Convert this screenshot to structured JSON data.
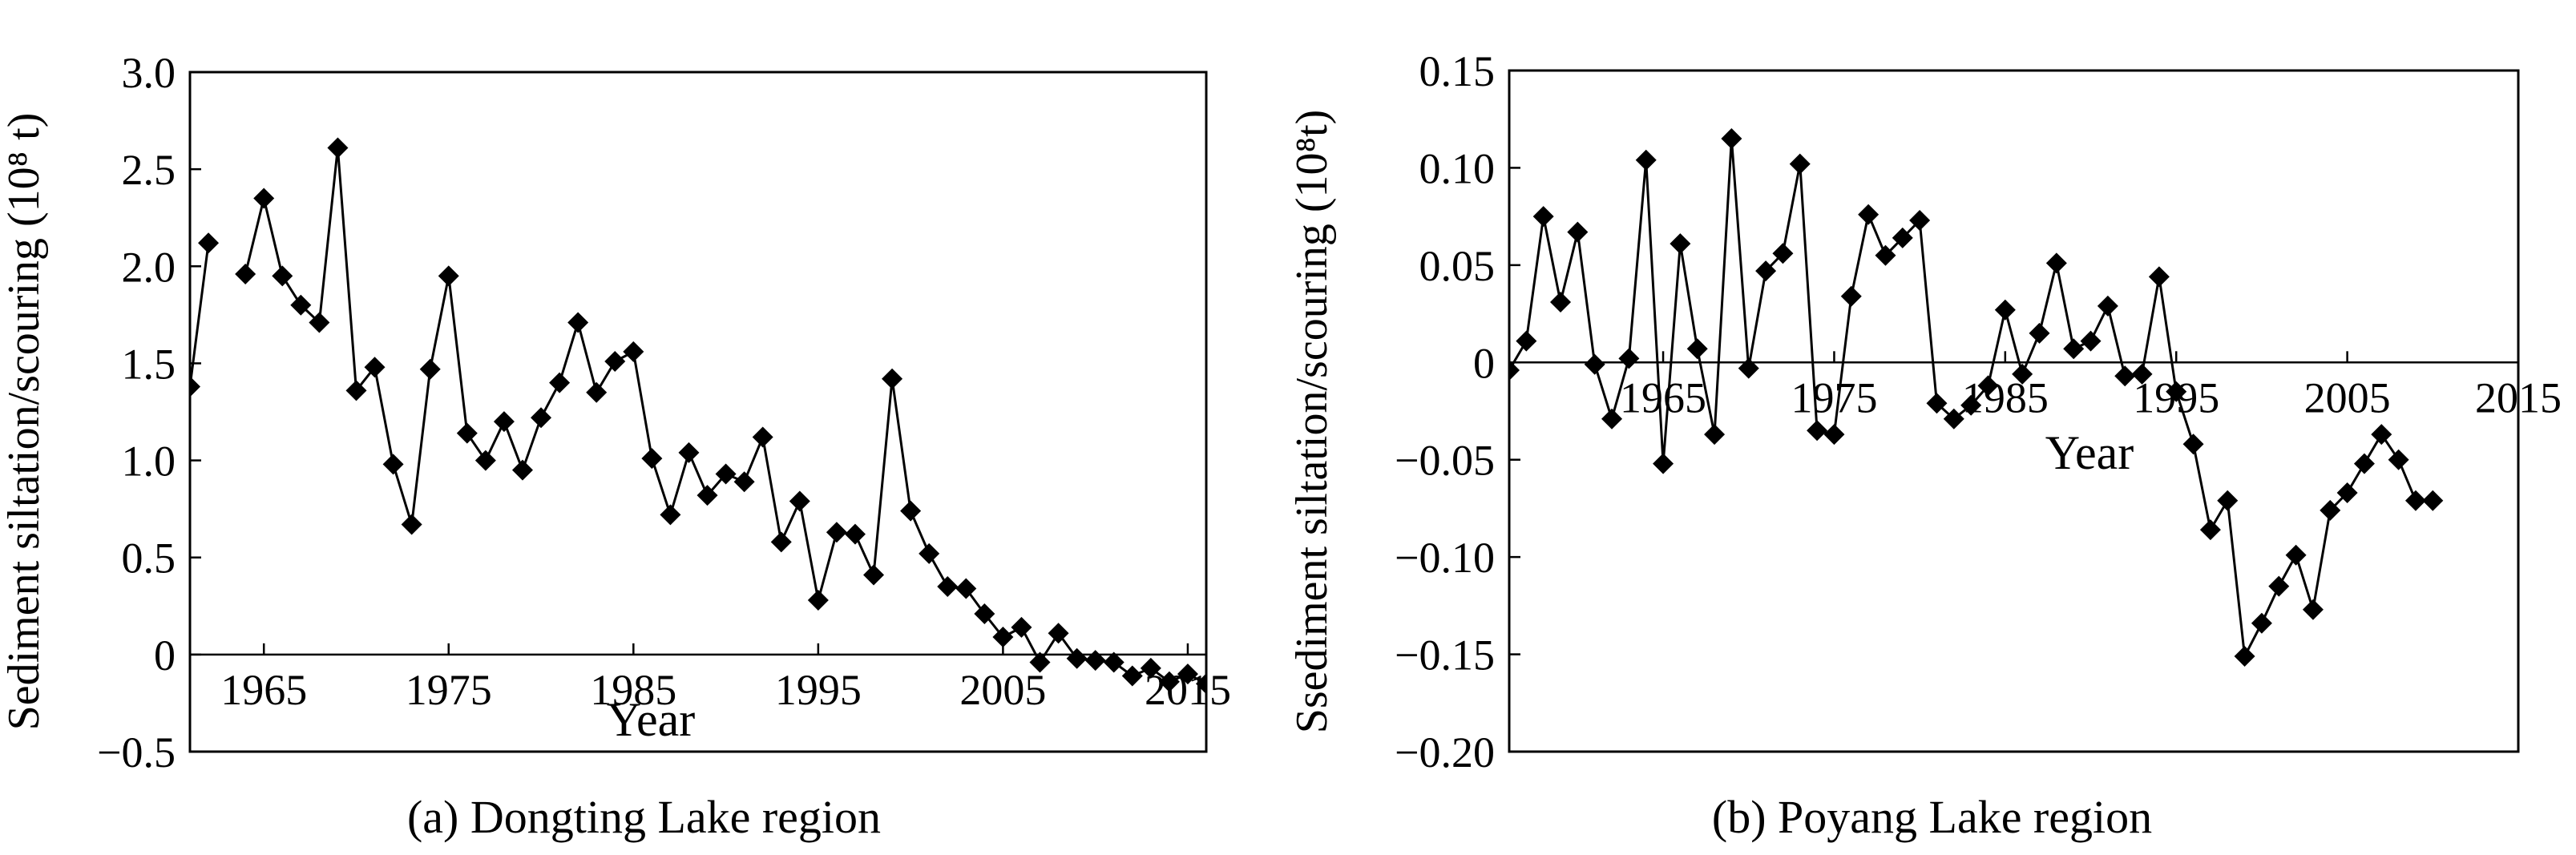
{
  "chart_data": [
    {
      "type": "line",
      "caption": "(a) Dongting Lake region",
      "ylabel": "Sediment siltation/scouring (10⁸ t)",
      "xlabel": "Year",
      "xlim": [
        1961,
        2016
      ],
      "ylim": [
        -0.5,
        3.0
      ],
      "yticks": [
        -0.5,
        0,
        0.5,
        1.0,
        1.5,
        2.0,
        2.5,
        3.0
      ],
      "ytick_labels": [
        "−0.5",
        "0",
        "0.5",
        "1.0",
        "1.5",
        "2.0",
        "2.5",
        "3.0"
      ],
      "xticks": [
        1965,
        1975,
        1985,
        1995,
        2005,
        2015
      ],
      "xtick_labels": [
        "1965",
        "1975",
        "1985",
        "1995",
        "2005",
        "2015"
      ],
      "zero_line": true,
      "grid": false,
      "marker": "diamond",
      "color": "#000000",
      "segments": [
        [
          [
            1961,
            1.38
          ],
          [
            1962,
            2.12
          ]
        ],
        [
          [
            1964,
            1.96
          ],
          [
            1965,
            2.35
          ],
          [
            1966,
            1.95
          ],
          [
            1967,
            1.8
          ],
          [
            1968,
            1.71
          ],
          [
            1969,
            2.61
          ],
          [
            1970,
            1.36
          ],
          [
            1971,
            1.48
          ],
          [
            1972,
            0.98
          ],
          [
            1973,
            0.67
          ],
          [
            1974,
            1.47
          ],
          [
            1975,
            1.95
          ],
          [
            1976,
            1.14
          ],
          [
            1977,
            1.0
          ],
          [
            1978,
            1.2
          ],
          [
            1979,
            0.95
          ],
          [
            1980,
            1.22
          ],
          [
            1981,
            1.4
          ],
          [
            1982,
            1.71
          ],
          [
            1983,
            1.35
          ],
          [
            1984,
            1.51
          ],
          [
            1985,
            1.56
          ],
          [
            1986,
            1.01
          ],
          [
            1987,
            0.72
          ],
          [
            1988,
            1.04
          ],
          [
            1989,
            0.82
          ],
          [
            1990,
            0.93
          ],
          [
            1991,
            0.89
          ],
          [
            1992,
            1.12
          ],
          [
            1993,
            0.58
          ],
          [
            1994,
            0.79
          ],
          [
            1995,
            0.28
          ],
          [
            1996,
            0.63
          ],
          [
            1997,
            0.62
          ],
          [
            1998,
            0.41
          ],
          [
            1999,
            1.42
          ],
          [
            2000,
            0.74
          ],
          [
            2001,
            0.52
          ],
          [
            2002,
            0.35
          ],
          [
            2003,
            0.34
          ],
          [
            2004,
            0.21
          ],
          [
            2005,
            0.09
          ],
          [
            2006,
            0.14
          ],
          [
            2007,
            -0.04
          ],
          [
            2008,
            0.11
          ],
          [
            2009,
            -0.02
          ],
          [
            2010,
            -0.03
          ],
          [
            2011,
            -0.04
          ],
          [
            2012,
            -0.11
          ],
          [
            2013,
            -0.07
          ],
          [
            2014,
            -0.14
          ],
          [
            2015,
            -0.1
          ],
          [
            2016,
            -0.15
          ]
        ]
      ]
    },
    {
      "type": "line",
      "caption": "(b) Poyang Lake region",
      "ylabel": "Ssediment siltation/scouring (10⁸t)",
      "xlabel": "Year",
      "xlim": [
        1956,
        2015
      ],
      "ylim": [
        -0.2,
        0.15
      ],
      "yticks": [
        -0.2,
        -0.15,
        -0.1,
        -0.05,
        0,
        0.05,
        0.1,
        0.15
      ],
      "ytick_labels": [
        "−0.20",
        "−0.15",
        "−0.10",
        "−0.05",
        "0",
        "0.05",
        "0.10",
        "0.15"
      ],
      "xticks": [
        1965,
        1975,
        1985,
        1995,
        2005,
        2015
      ],
      "xtick_labels": [
        "1965",
        "1975",
        "1985",
        "1995",
        "2005",
        "2015"
      ],
      "zero_line": true,
      "grid": false,
      "marker": "diamond",
      "color": "#000000",
      "segments": [
        [
          [
            1956,
            -0.004
          ],
          [
            1957,
            0.011
          ],
          [
            1958,
            0.075
          ],
          [
            1959,
            0.031
          ],
          [
            1960,
            0.067
          ],
          [
            1961,
            -0.001
          ],
          [
            1962,
            -0.029
          ],
          [
            1963,
            0.002
          ],
          [
            1964,
            0.104
          ],
          [
            1965,
            -0.052
          ],
          [
            1966,
            0.061
          ],
          [
            1967,
            0.007
          ],
          [
            1968,
            -0.037
          ],
          [
            1969,
            0.115
          ],
          [
            1970,
            -0.003
          ],
          [
            1971,
            0.047
          ],
          [
            1972,
            0.056
          ],
          [
            1973,
            0.102
          ],
          [
            1974,
            -0.035
          ],
          [
            1975,
            -0.037
          ],
          [
            1976,
            0.034
          ],
          [
            1977,
            0.076
          ],
          [
            1978,
            0.055
          ],
          [
            1979,
            0.064
          ],
          [
            1980,
            0.073
          ],
          [
            1981,
            -0.021
          ],
          [
            1982,
            -0.029
          ],
          [
            1983,
            -0.022
          ],
          [
            1984,
            -0.012
          ],
          [
            1985,
            0.027
          ],
          [
            1986,
            -0.006
          ],
          [
            1987,
            0.015
          ],
          [
            1988,
            0.051
          ],
          [
            1989,
            0.007
          ],
          [
            1990,
            0.011
          ],
          [
            1991,
            0.029
          ],
          [
            1992,
            -0.007
          ],
          [
            1993,
            -0.006
          ],
          [
            1994,
            0.044
          ],
          [
            1995,
            -0.015
          ],
          [
            1996,
            -0.042
          ],
          [
            1997,
            -0.086
          ],
          [
            1998,
            -0.071
          ],
          [
            1999,
            -0.151
          ],
          [
            2000,
            -0.134
          ],
          [
            2001,
            -0.115
          ],
          [
            2002,
            -0.099
          ],
          [
            2003,
            -0.127
          ],
          [
            2004,
            -0.076
          ],
          [
            2005,
            -0.067
          ],
          [
            2006,
            -0.052
          ],
          [
            2007,
            -0.037
          ],
          [
            2008,
            -0.05
          ],
          [
            2009,
            -0.071
          ],
          [
            2010,
            -0.071
          ]
        ]
      ]
    }
  ]
}
